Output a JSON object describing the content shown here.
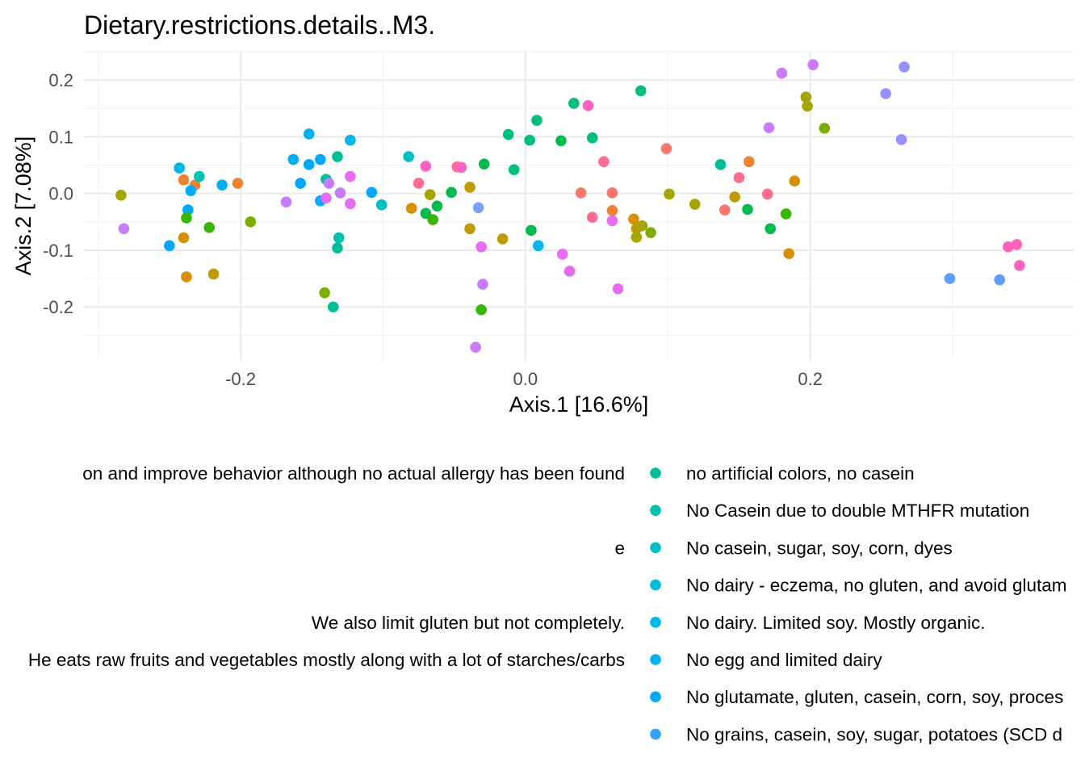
{
  "chart_data": {
    "type": "scatter",
    "title": "Dietary.restrictions.details..M3.",
    "xlabel": "Axis.1 [16.6%]",
    "ylabel": "Axis.2 [7.08%]",
    "xlim": [
      -0.31,
      0.385
    ],
    "ylim": [
      -0.295,
      0.25
    ],
    "x_ticks": [
      -0.2,
      0.0,
      0.2
    ],
    "x_tick_labels": [
      "-0.2",
      "0.0",
      "0.2"
    ],
    "y_ticks": [
      -0.2,
      -0.1,
      0.0,
      0.1,
      0.2
    ],
    "y_tick_labels": [
      "-0.2",
      "-0.1",
      "0.0",
      "0.1",
      "0.2"
    ],
    "grid": true,
    "legend_position": "bottom",
    "legend": {
      "left_column": [
        {
          "label": "on and improve behavior although no actual allergy has been found",
          "color": "#EB8335"
        },
        {
          "label": "",
          "color": "#D89000"
        },
        {
          "label": "e",
          "color": "#BE9C00"
        },
        {
          "label": "",
          "color": "#A3A500"
        },
        {
          "label": " We also limit gluten but not completely.",
          "color": "#7CAE00"
        },
        {
          "label": "He eats raw fruits and vegetables mostly along with a lot of starches/carbs",
          "color": "#39B600"
        },
        {
          "label": "",
          "color": "#00BB4E"
        },
        {
          "label": "",
          "color": "#00BF7D"
        }
      ],
      "right_column": [
        {
          "label": "no artificial colors, no casein",
          "color": "#00BF98"
        },
        {
          "label": "No Casein due to double MTHFR mutation",
          "color": "#00C0AF"
        },
        {
          "label": "No casein, sugar, soy, corn, dyes",
          "color": "#00BFC4"
        },
        {
          "label": "No dairy - eczema, no gluten, and avoid glutam",
          "color": "#00BBD8"
        },
        {
          "label": "No dairy. Limited soy. Mostly organic.",
          "color": "#00B6EB"
        },
        {
          "label": "No egg and limited dairy",
          "color": "#00B0F6"
        },
        {
          "label": "No glutamate, gluten, casein, corn, soy, proces",
          "color": "#00A9FF"
        },
        {
          "label": "No grains, casein, soy, sugar, potatoes (SCD d",
          "color": "#35A2FF"
        }
      ]
    },
    "points": [
      {
        "x": -0.282,
        "y": -0.062,
        "color": "#C77CFF"
      },
      {
        "x": -0.284,
        "y": -0.003,
        "color": "#A3A500"
      },
      {
        "x": -0.243,
        "y": 0.045,
        "color": "#00B6EB"
      },
      {
        "x": -0.24,
        "y": 0.024,
        "color": "#EB8335"
      },
      {
        "x": -0.232,
        "y": 0.015,
        "color": "#EB8335"
      },
      {
        "x": -0.229,
        "y": 0.03,
        "color": "#00C0AF"
      },
      {
        "x": -0.235,
        "y": 0.005,
        "color": "#00A9FF"
      },
      {
        "x": -0.237,
        "y": -0.029,
        "color": "#00A9FF"
      },
      {
        "x": -0.238,
        "y": -0.043,
        "color": "#39B600"
      },
      {
        "x": -0.24,
        "y": -0.078,
        "color": "#D89000"
      },
      {
        "x": -0.25,
        "y": -0.092,
        "color": "#00A9FF"
      },
      {
        "x": -0.238,
        "y": -0.147,
        "color": "#D89000"
      },
      {
        "x": -0.219,
        "y": -0.142,
        "color": "#BE9C00"
      },
      {
        "x": -0.222,
        "y": -0.06,
        "color": "#39B600"
      },
      {
        "x": -0.213,
        "y": 0.015,
        "color": "#00B0F6"
      },
      {
        "x": -0.202,
        "y": 0.018,
        "color": "#EB8335"
      },
      {
        "x": -0.193,
        "y": -0.05,
        "color": "#7CAE00"
      },
      {
        "x": -0.168,
        "y": -0.015,
        "color": "#C77CFF"
      },
      {
        "x": -0.163,
        "y": 0.06,
        "color": "#00B0F6"
      },
      {
        "x": -0.158,
        "y": 0.018,
        "color": "#00A9FF"
      },
      {
        "x": -0.152,
        "y": 0.105,
        "color": "#00B0F6"
      },
      {
        "x": -0.152,
        "y": 0.051,
        "color": "#00A9FF"
      },
      {
        "x": -0.144,
        "y": 0.06,
        "color": "#00A9FF"
      },
      {
        "x": -0.144,
        "y": -0.013,
        "color": "#00A9FF"
      },
      {
        "x": -0.14,
        "y": 0.025,
        "color": "#00BF98"
      },
      {
        "x": -0.138,
        "y": 0.018,
        "color": "#C77CFF"
      },
      {
        "x": -0.14,
        "y": -0.008,
        "color": "#E76BF3"
      },
      {
        "x": -0.132,
        "y": 0.065,
        "color": "#00BF98"
      },
      {
        "x": -0.13,
        "y": 0.001,
        "color": "#C77CFF"
      },
      {
        "x": -0.123,
        "y": 0.03,
        "color": "#E76BF3"
      },
      {
        "x": -0.123,
        "y": -0.018,
        "color": "#E76BF3"
      },
      {
        "x": -0.123,
        "y": 0.094,
        "color": "#00B6EB"
      },
      {
        "x": -0.131,
        "y": -0.078,
        "color": "#00C0AF"
      },
      {
        "x": -0.132,
        "y": -0.096,
        "color": "#00BF98"
      },
      {
        "x": -0.141,
        "y": -0.175,
        "color": "#7CAE00"
      },
      {
        "x": -0.135,
        "y": -0.2,
        "color": "#00BF98"
      },
      {
        "x": -0.108,
        "y": 0.002,
        "color": "#00A9FF"
      },
      {
        "x": -0.101,
        "y": -0.02,
        "color": "#00BFC4"
      },
      {
        "x": -0.082,
        "y": 0.065,
        "color": "#00BFC4"
      },
      {
        "x": -0.08,
        "y": -0.026,
        "color": "#D89000"
      },
      {
        "x": -0.075,
        "y": 0.018,
        "color": "#FF6C91"
      },
      {
        "x": -0.07,
        "y": 0.048,
        "color": "#FF61C3"
      },
      {
        "x": -0.067,
        "y": -0.002,
        "color": "#A3A500"
      },
      {
        "x": -0.07,
        "y": -0.035,
        "color": "#00BB4E"
      },
      {
        "x": -0.065,
        "y": -0.046,
        "color": "#39B600"
      },
      {
        "x": -0.062,
        "y": -0.022,
        "color": "#00BB4E"
      },
      {
        "x": -0.052,
        "y": 0.002,
        "color": "#00BB4E"
      },
      {
        "x": -0.048,
        "y": 0.047,
        "color": "#FF6C91"
      },
      {
        "x": -0.045,
        "y": 0.046,
        "color": "#FF61C3"
      },
      {
        "x": -0.039,
        "y": 0.011,
        "color": "#BE9C00"
      },
      {
        "x": -0.039,
        "y": -0.062,
        "color": "#BE9C00"
      },
      {
        "x": -0.035,
        "y": -0.271,
        "color": "#C77CFF"
      },
      {
        "x": -0.033,
        "y": -0.025,
        "color": "#7CA0FF"
      },
      {
        "x": -0.031,
        "y": -0.205,
        "color": "#39B600"
      },
      {
        "x": -0.031,
        "y": -0.094,
        "color": "#E76BF3"
      },
      {
        "x": -0.03,
        "y": -0.16,
        "color": "#C77CFF"
      },
      {
        "x": -0.029,
        "y": 0.052,
        "color": "#00BB4E"
      },
      {
        "x": -0.016,
        "y": -0.08,
        "color": "#BE9C00"
      },
      {
        "x": -0.012,
        "y": 0.104,
        "color": "#00BF7D"
      },
      {
        "x": -0.008,
        "y": 0.042,
        "color": "#00BF7D"
      },
      {
        "x": 0.003,
        "y": 0.094,
        "color": "#00BF7D"
      },
      {
        "x": 0.004,
        "y": -0.065,
        "color": "#00BB4E"
      },
      {
        "x": 0.008,
        "y": 0.129,
        "color": "#00BF7D"
      },
      {
        "x": 0.009,
        "y": -0.092,
        "color": "#00B6EB"
      },
      {
        "x": 0.025,
        "y": 0.093,
        "color": "#00BB4E"
      },
      {
        "x": 0.026,
        "y": -0.107,
        "color": "#E76BF3"
      },
      {
        "x": 0.031,
        "y": -0.137,
        "color": "#E76BF3"
      },
      {
        "x": 0.034,
        "y": 0.159,
        "color": "#00BF7D"
      },
      {
        "x": 0.039,
        "y": 0.001,
        "color": "#F8766D"
      },
      {
        "x": 0.044,
        "y": 0.155,
        "color": "#FF61C3"
      },
      {
        "x": 0.047,
        "y": 0.098,
        "color": "#00BF7D"
      },
      {
        "x": 0.047,
        "y": -0.042,
        "color": "#FF6C91"
      },
      {
        "x": 0.055,
        "y": 0.056,
        "color": "#FF6C91"
      },
      {
        "x": 0.061,
        "y": 0.001,
        "color": "#F8766D"
      },
      {
        "x": 0.061,
        "y": -0.03,
        "color": "#EB8335"
      },
      {
        "x": 0.061,
        "y": -0.048,
        "color": "#E76BF3"
      },
      {
        "x": 0.065,
        "y": -0.168,
        "color": "#E76BF3"
      },
      {
        "x": 0.076,
        "y": -0.045,
        "color": "#D89000"
      },
      {
        "x": 0.078,
        "y": -0.062,
        "color": "#BE9C00"
      },
      {
        "x": 0.078,
        "y": -0.077,
        "color": "#A3A500"
      },
      {
        "x": 0.081,
        "y": 0.181,
        "color": "#00BF7D"
      },
      {
        "x": 0.082,
        "y": -0.057,
        "color": "#A3A500"
      },
      {
        "x": 0.088,
        "y": -0.069,
        "color": "#7CAE00"
      },
      {
        "x": 0.099,
        "y": 0.079,
        "color": "#F8766D"
      },
      {
        "x": 0.101,
        "y": -0.001,
        "color": "#A3A500"
      },
      {
        "x": 0.119,
        "y": -0.019,
        "color": "#A3A500"
      },
      {
        "x": 0.137,
        "y": 0.051,
        "color": "#00BF98"
      },
      {
        "x": 0.14,
        "y": -0.029,
        "color": "#F8766D"
      },
      {
        "x": 0.147,
        "y": -0.006,
        "color": "#BE9C00"
      },
      {
        "x": 0.15,
        "y": 0.028,
        "color": "#FF6C91"
      },
      {
        "x": 0.156,
        "y": -0.028,
        "color": "#00BB4E"
      },
      {
        "x": 0.157,
        "y": 0.056,
        "color": "#EB8335"
      },
      {
        "x": 0.17,
        "y": -0.001,
        "color": "#FF6C91"
      },
      {
        "x": 0.171,
        "y": 0.116,
        "color": "#C77CFF"
      },
      {
        "x": 0.172,
        "y": -0.062,
        "color": "#00BB4E"
      },
      {
        "x": 0.18,
        "y": 0.212,
        "color": "#C77CFF"
      },
      {
        "x": 0.183,
        "y": -0.036,
        "color": "#39B600"
      },
      {
        "x": 0.185,
        "y": -0.106,
        "color": "#D89000"
      },
      {
        "x": 0.189,
        "y": 0.022,
        "color": "#D89000"
      },
      {
        "x": 0.197,
        "y": 0.17,
        "color": "#A3A500"
      },
      {
        "x": 0.198,
        "y": 0.154,
        "color": "#A3A500"
      },
      {
        "x": 0.202,
        "y": 0.227,
        "color": "#C77CFF"
      },
      {
        "x": 0.21,
        "y": 0.115,
        "color": "#7CAE00"
      },
      {
        "x": 0.253,
        "y": 0.176,
        "color": "#9590FF"
      },
      {
        "x": 0.264,
        "y": 0.095,
        "color": "#9590FF"
      },
      {
        "x": 0.266,
        "y": 0.223,
        "color": "#9590FF"
      },
      {
        "x": 0.298,
        "y": -0.15,
        "color": "#619CFF"
      },
      {
        "x": 0.333,
        "y": -0.152,
        "color": "#619CFF"
      },
      {
        "x": 0.339,
        "y": -0.094,
        "color": "#FF62BC"
      },
      {
        "x": 0.345,
        "y": -0.09,
        "color": "#FF62BC"
      },
      {
        "x": 0.347,
        "y": -0.127,
        "color": "#FF62BC"
      }
    ]
  }
}
